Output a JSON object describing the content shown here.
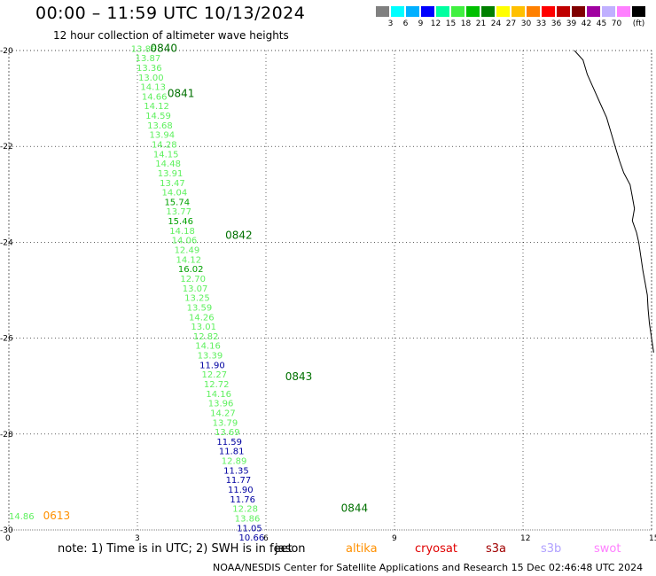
{
  "header": {
    "title": "00:00 – 11:59 UTC 10/13/2024",
    "subtitle": "12 hour collection of altimeter wave heights"
  },
  "legend": {
    "labels": [
      "",
      "3",
      "6",
      "9",
      "12",
      "15",
      "18",
      "21",
      "24",
      "27",
      "30",
      "33",
      "36",
      "39",
      "42",
      "45",
      "70",
      "(ft)"
    ],
    "colors": [
      "#808080",
      "#00ffff",
      "#00b0ff",
      "#0000ff",
      "#00ffa0",
      "#40f040",
      "#00c000",
      "#008000",
      "#ffff00",
      "#ffc000",
      "#ff8000",
      "#ff0000",
      "#c00000",
      "#800000",
      "#a000a0",
      "#c0b0ff",
      "#ff80ff",
      "#000000"
    ]
  },
  "colors": {
    "light_green": "#5ef05e",
    "green": "#00a000",
    "dark_green": "#007000",
    "navy": "#0000a0",
    "orange": "#ff9000",
    "jason": "#000000",
    "altika": "#ff9000",
    "cryosat": "#e00000",
    "s3a": "#a00000",
    "s3b": "#b0a0ff",
    "swot": "#ff80ff"
  },
  "map": {
    "x_ticks": [
      "0",
      "3",
      "6",
      "9",
      "12",
      "15"
    ],
    "y_ticks": [
      "-20",
      "-22",
      "-24",
      "-26",
      "-28",
      "-30"
    ]
  },
  "chart_data": {
    "type": "scatter",
    "title": "00:00 – 11:59 UTC 10/13/2024",
    "subtitle": "12 hour collection of altimeter wave heights",
    "x_label": "",
    "y_label": "",
    "xlim": [
      0,
      15
    ],
    "ylim": [
      -30,
      -20
    ],
    "units": "ft",
    "track_points": [
      {
        "lon": 2.85,
        "lat": -19.95,
        "swh": "13.86",
        "color": "light_green"
      },
      {
        "lon": 2.95,
        "lat": -20.15,
        "swh": "13.87",
        "color": "light_green"
      },
      {
        "lon": 2.98,
        "lat": -20.35,
        "swh": "13.36",
        "color": "light_green"
      },
      {
        "lon": 3.02,
        "lat": -20.55,
        "swh": "13.00",
        "color": "light_green"
      },
      {
        "lon": 3.07,
        "lat": -20.75,
        "swh": "14.13",
        "color": "light_green"
      },
      {
        "lon": 3.1,
        "lat": -20.95,
        "swh": "14.66",
        "color": "light_green"
      },
      {
        "lon": 3.15,
        "lat": -21.15,
        "swh": "14.12",
        "color": "light_green"
      },
      {
        "lon": 3.19,
        "lat": -21.35,
        "swh": "14.59",
        "color": "light_green"
      },
      {
        "lon": 3.23,
        "lat": -21.55,
        "swh": "13.68",
        "color": "light_green"
      },
      {
        "lon": 3.28,
        "lat": -21.75,
        "swh": "13.94",
        "color": "light_green"
      },
      {
        "lon": 3.33,
        "lat": -21.95,
        "swh": "14.28",
        "color": "light_green"
      },
      {
        "lon": 3.37,
        "lat": -22.15,
        "swh": "14.15",
        "color": "light_green"
      },
      {
        "lon": 3.42,
        "lat": -22.35,
        "swh": "14.48",
        "color": "light_green"
      },
      {
        "lon": 3.47,
        "lat": -22.55,
        "swh": "13.91",
        "color": "light_green"
      },
      {
        "lon": 3.52,
        "lat": -22.75,
        "swh": "13.47",
        "color": "light_green"
      },
      {
        "lon": 3.57,
        "lat": -22.95,
        "swh": "14.04",
        "color": "light_green"
      },
      {
        "lon": 3.63,
        "lat": -23.15,
        "swh": "15.74",
        "color": "green"
      },
      {
        "lon": 3.67,
        "lat": -23.35,
        "swh": "13.77",
        "color": "light_green"
      },
      {
        "lon": 3.71,
        "lat": -23.55,
        "swh": "15.46",
        "color": "green"
      },
      {
        "lon": 3.75,
        "lat": -23.75,
        "swh": "14.18",
        "color": "light_green"
      },
      {
        "lon": 3.8,
        "lat": -23.95,
        "swh": "14.06",
        "color": "light_green"
      },
      {
        "lon": 3.86,
        "lat": -24.15,
        "swh": "12.49",
        "color": "light_green"
      },
      {
        "lon": 3.9,
        "lat": -24.35,
        "swh": "14.12",
        "color": "light_green"
      },
      {
        "lon": 3.95,
        "lat": -24.55,
        "swh": "16.02",
        "color": "green"
      },
      {
        "lon": 4.0,
        "lat": -24.75,
        "swh": "12.70",
        "color": "light_green"
      },
      {
        "lon": 4.05,
        "lat": -24.95,
        "swh": "13.07",
        "color": "light_green"
      },
      {
        "lon": 4.1,
        "lat": -25.15,
        "swh": "13.25",
        "color": "light_green"
      },
      {
        "lon": 4.15,
        "lat": -25.35,
        "swh": "13.59",
        "color": "light_green"
      },
      {
        "lon": 4.2,
        "lat": -25.55,
        "swh": "14.26",
        "color": "light_green"
      },
      {
        "lon": 4.25,
        "lat": -25.75,
        "swh": "13.01",
        "color": "light_green"
      },
      {
        "lon": 4.3,
        "lat": -25.95,
        "swh": "12.82",
        "color": "light_green"
      },
      {
        "lon": 4.35,
        "lat": -26.15,
        "swh": "14.16",
        "color": "light_green"
      },
      {
        "lon": 4.4,
        "lat": -26.35,
        "swh": "13.39",
        "color": "light_green"
      },
      {
        "lon": 4.45,
        "lat": -26.55,
        "swh": "11.90",
        "color": "navy"
      },
      {
        "lon": 4.5,
        "lat": -26.75,
        "swh": "12.27",
        "color": "light_green"
      },
      {
        "lon": 4.55,
        "lat": -26.95,
        "swh": "12.72",
        "color": "light_green"
      },
      {
        "lon": 4.6,
        "lat": -27.15,
        "swh": "14.16",
        "color": "light_green"
      },
      {
        "lon": 4.65,
        "lat": -27.35,
        "swh": "13.96",
        "color": "light_green"
      },
      {
        "lon": 4.7,
        "lat": -27.55,
        "swh": "14.27",
        "color": "light_green"
      },
      {
        "lon": 4.75,
        "lat": -27.75,
        "swh": "13.79",
        "color": "light_green"
      },
      {
        "lon": 4.8,
        "lat": -27.95,
        "swh": "13.69",
        "color": "light_green"
      },
      {
        "lon": 4.85,
        "lat": -28.15,
        "swh": "11.59",
        "color": "navy"
      },
      {
        "lon": 4.9,
        "lat": -28.35,
        "swh": "11.81",
        "color": "navy"
      },
      {
        "lon": 4.96,
        "lat": -28.55,
        "swh": "12.89",
        "color": "light_green"
      },
      {
        "lon": 5.01,
        "lat": -28.75,
        "swh": "11.35",
        "color": "navy"
      },
      {
        "lon": 5.06,
        "lat": -28.95,
        "swh": "11.77",
        "color": "navy"
      },
      {
        "lon": 5.11,
        "lat": -29.15,
        "swh": "11.90",
        "color": "navy"
      },
      {
        "lon": 5.16,
        "lat": -29.35,
        "swh": "11.76",
        "color": "navy"
      },
      {
        "lon": 5.22,
        "lat": -29.55,
        "swh": "12.28",
        "color": "light_green"
      },
      {
        "lon": 5.27,
        "lat": -29.75,
        "swh": "13.86",
        "color": "light_green"
      },
      {
        "lon": 5.32,
        "lat": -29.95,
        "swh": "11.05",
        "color": "navy"
      },
      {
        "lon": 5.37,
        "lat": -30.15,
        "swh": "10.66",
        "color": "navy"
      },
      {
        "lon": 0.0,
        "lat": -29.7,
        "swh": "14.86",
        "color": "light_green"
      }
    ],
    "time_labels": [
      {
        "lon": 3.3,
        "lat": -19.95,
        "text": "0840",
        "color": "dark_green"
      },
      {
        "lon": 3.7,
        "lat": -20.9,
        "text": "0841",
        "color": "dark_green"
      },
      {
        "lon": 5.05,
        "lat": -23.85,
        "text": "0842",
        "color": "dark_green"
      },
      {
        "lon": 6.45,
        "lat": -26.8,
        "text": "0843",
        "color": "dark_green"
      },
      {
        "lon": 7.75,
        "lat": -29.55,
        "text": "0844",
        "color": "dark_green"
      },
      {
        "lon": 0.8,
        "lat": -29.7,
        "text": "0613",
        "color": "orange"
      }
    ],
    "coastline": [
      [
        13.2,
        -20.0
      ],
      [
        13.4,
        -20.2
      ],
      [
        13.5,
        -20.5
      ],
      [
        13.65,
        -20.8
      ],
      [
        13.8,
        -21.1
      ],
      [
        13.95,
        -21.4
      ],
      [
        14.05,
        -21.7
      ],
      [
        14.15,
        -22.0
      ],
      [
        14.25,
        -22.3
      ],
      [
        14.35,
        -22.55
      ],
      [
        14.5,
        -22.8
      ],
      [
        14.55,
        -23.05
      ],
      [
        14.6,
        -23.3
      ],
      [
        14.55,
        -23.55
      ],
      [
        14.65,
        -23.8
      ],
      [
        14.7,
        -24.0
      ],
      [
        14.75,
        -24.3
      ],
      [
        14.8,
        -24.6
      ],
      [
        14.85,
        -24.85
      ],
      [
        14.9,
        -25.1
      ],
      [
        14.92,
        -25.4
      ],
      [
        14.95,
        -25.7
      ],
      [
        15.0,
        -26.0
      ],
      [
        15.05,
        -26.3
      ]
    ]
  },
  "footer": {
    "note": "note:  1) Time is in UTC; 2) SWH is in feet",
    "satellites": [
      "jason",
      "altika",
      "cryosat",
      "s3a",
      "s3b",
      "swot"
    ],
    "credit": "NOAA/NESDIS Center for Satellite Applications and Research    15 Dec 02:46:48 UTC 2024"
  }
}
